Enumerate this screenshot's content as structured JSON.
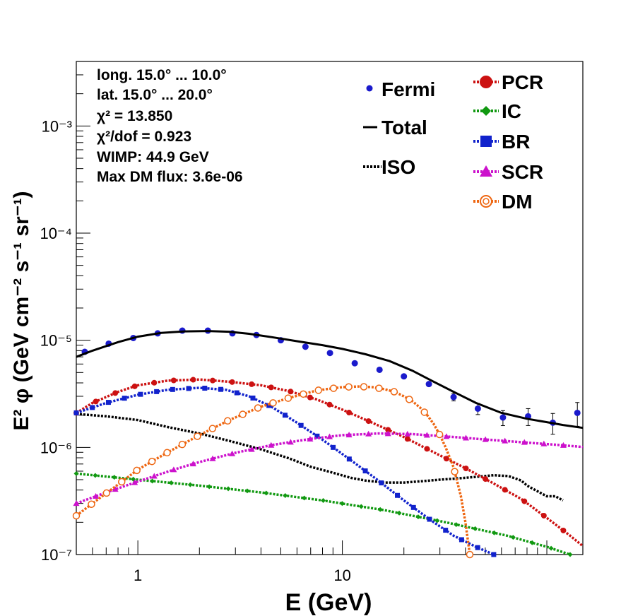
{
  "chart_data": {
    "type": "scatter",
    "x_scale": "log",
    "y_scale": "log",
    "xlim": [
      0.5,
      150
    ],
    "ylim": [
      1e-07,
      0.004
    ],
    "xlabel": "E (GeV)",
    "ylabel": "E² φ (GeV cm⁻² s⁻¹ sr⁻¹)",
    "x_tick_labels": [
      "1",
      "10"
    ],
    "y_tick_labels": [
      "10⁻⁷",
      "10⁻⁶",
      "10⁻⁵",
      "10⁻⁴",
      "10⁻³"
    ],
    "grid": false,
    "info_box": {
      "lines": [
        "long. 15.0° ... 10.0°",
        "lat. 15.0° ... 20.0°",
        "χ² = 13.850",
        "χ²/dof = 0.923",
        "WIMP: 44.9 GeV",
        "Max DM flux: 3.6e-06"
      ]
    },
    "legend_left": [
      "Fermi",
      "Total",
      "ISO"
    ],
    "legend_right": [
      "PCR",
      "IC",
      "BR",
      "SCR",
      "DM"
    ],
    "series": [
      {
        "name": "Fermi",
        "color": "#1a1acc",
        "style": "points",
        "x": [
          0.55,
          0.72,
          0.95,
          1.25,
          1.65,
          2.2,
          2.9,
          3.8,
          5.0,
          6.6,
          8.7,
          11.5,
          15.2,
          20,
          26.5,
          35,
          46,
          61,
          81,
          107,
          141
        ],
        "y": [
          7.8e-06,
          9.3e-06,
          1.05e-05,
          1.16e-05,
          1.23e-05,
          1.23e-05,
          1.16e-05,
          1.12e-05,
          1e-05,
          8.7e-06,
          7.6e-06,
          6.1e-06,
          5.3e-06,
          4.6e-06,
          3.9e-06,
          2.95e-06,
          2.3e-06,
          1.9e-06,
          1.95e-06,
          1.7e-06,
          2.1e-06
        ],
        "yerr": [
          0,
          0,
          0,
          0,
          0,
          0,
          0,
          0,
          0,
          0,
          0,
          0,
          0,
          0,
          0,
          0.08,
          0.12,
          0.16,
          0.18,
          0.22,
          0.25
        ]
      },
      {
        "name": "Total",
        "color": "#000000",
        "style": "solid",
        "x": [
          0.5,
          0.6,
          0.8,
          1.0,
          1.3,
          1.7,
          2.2,
          2.8,
          3.5,
          4.5,
          6,
          8,
          10,
          13,
          17,
          22,
          28,
          35,
          45,
          60,
          80,
          100,
          120,
          150
        ],
        "y": [
          7e-06,
          8e-06,
          9.6e-06,
          1.08e-05,
          1.17e-05,
          1.21e-05,
          1.22e-05,
          1.2e-05,
          1.15e-05,
          1.07e-05,
          9.8e-06,
          9e-06,
          8.3e-06,
          7.4e-06,
          6.4e-06,
          5.2e-06,
          4.1e-06,
          3.3e-06,
          2.6e-06,
          2.1e-06,
          1.85e-06,
          1.72e-06,
          1.62e-06,
          1.52e-06
        ]
      },
      {
        "name": "ISO",
        "color": "#000000",
        "style": "dotted",
        "x": [
          0.5,
          0.7,
          1.0,
          1.4,
          2.0,
          2.8,
          4.0,
          5.5,
          7,
          9,
          11,
          13,
          16,
          20,
          25,
          30,
          35,
          45,
          55,
          65,
          75,
          80,
          90,
          100,
          110,
          120
        ],
        "y": [
          2.05e-06,
          1.95e-06,
          1.8e-06,
          1.55e-06,
          1.35e-06,
          1.15e-06,
          9.6e-07,
          7.9e-07,
          6.6e-07,
          5.8e-07,
          5.2e-07,
          4.9e-07,
          4.7e-07,
          4.7e-07,
          4.85e-07,
          5e-07,
          5.1e-07,
          5.3e-07,
          5.5e-07,
          5.4e-07,
          4.9e-07,
          4.4e-07,
          3.9e-07,
          3.5e-07,
          3.5e-07,
          3.2e-07
        ]
      },
      {
        "name": "PCR",
        "color": "#cc1111",
        "style": "dotted-markers",
        "x": [
          0.5,
          0.6,
          0.8,
          1.0,
          1.4,
          2.0,
          2.8,
          4.0,
          5.5,
          7.5,
          10,
          14,
          20,
          28,
          40,
          55,
          75,
          100,
          130,
          150
        ],
        "y": [
          2.1e-06,
          2.6e-06,
          3.3e-06,
          3.8e-06,
          4.2e-06,
          4.3e-06,
          4.1e-06,
          3.8e-06,
          3.35e-06,
          2.8e-06,
          2.25e-06,
          1.7e-06,
          1.25e-06,
          9e-07,
          6.4e-07,
          4.6e-07,
          3.3e-07,
          2.2e-07,
          1.5e-07,
          1.2e-07
        ]
      },
      {
        "name": "IC",
        "color": "#119911",
        "style": "dotted-markers",
        "x": [
          0.5,
          1.0,
          2.0,
          4.0,
          8.0,
          16,
          32,
          64,
          100,
          130
        ],
        "y": [
          5.7e-07,
          5e-07,
          4.4e-07,
          3.8e-07,
          3.2e-07,
          2.6e-07,
          2e-07,
          1.5e-07,
          1.18e-07,
          1e-07
        ]
      },
      {
        "name": "BR",
        "color": "#1122cc",
        "style": "dotted-markers",
        "x": [
          0.5,
          0.7,
          1.0,
          1.4,
          2.0,
          2.7,
          3.5,
          4.5,
          6.0,
          8.0,
          11,
          15,
          20,
          27,
          35,
          45,
          55
        ],
        "y": [
          2.1e-06,
          2.6e-06,
          3.1e-06,
          3.45e-06,
          3.6e-06,
          3.45e-06,
          3e-06,
          2.4e-06,
          1.7e-06,
          1.18e-06,
          7.6e-07,
          4.9e-07,
          3.2e-07,
          2.1e-07,
          1.5e-07,
          1.18e-07,
          1e-07
        ]
      },
      {
        "name": "SCR",
        "color": "#cc11cc",
        "style": "dotted-markers",
        "x": [
          0.5,
          0.7,
          1.0,
          1.5,
          2.0,
          3.0,
          4.5,
          7.0,
          10,
          15,
          22,
          35,
          55,
          80,
          110,
          150
        ],
        "y": [
          3e-07,
          3.8e-07,
          4.8e-07,
          6.2e-07,
          7.3e-07,
          8.9e-07,
          1.05e-06,
          1.2e-06,
          1.3e-06,
          1.35e-06,
          1.33e-06,
          1.25e-06,
          1.17e-06,
          1.11e-06,
          1.06e-06,
          1.01e-06
        ]
      },
      {
        "name": "DM",
        "color": "#ee6611",
        "style": "dotted-open-markers",
        "x": [
          0.5,
          0.6,
          0.8,
          1.0,
          1.4,
          2.0,
          2.8,
          4.0,
          5.5,
          7.5,
          10,
          12,
          14,
          16,
          18,
          20,
          22,
          24,
          26,
          28,
          30,
          32,
          35,
          38,
          40,
          42
        ],
        "y": [
          2.3e-07,
          3e-07,
          4.5e-07,
          6.2e-07,
          9e-07,
          1.3e-06,
          1.8e-06,
          2.4e-06,
          2.9e-06,
          3.4e-06,
          3.65e-06,
          3.7e-06,
          3.65e-06,
          3.5e-06,
          3.3e-06,
          3e-06,
          2.7e-06,
          2.35e-06,
          2e-06,
          1.65e-06,
          1.3e-06,
          1e-06,
          6.5e-07,
          3.5e-07,
          2e-07,
          1e-07
        ]
      }
    ]
  }
}
